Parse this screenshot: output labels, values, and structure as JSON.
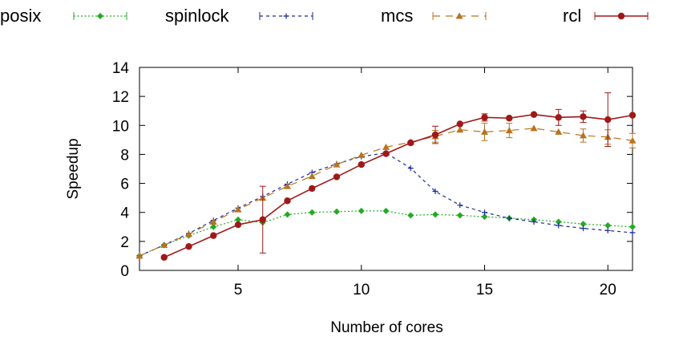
{
  "chart_data": {
    "type": "line",
    "xlabel": "Number of cores",
    "ylabel": "Speedup",
    "xlim": [
      1,
      21
    ],
    "ylim": [
      0,
      14
    ],
    "xticks": [
      5,
      10,
      15,
      20
    ],
    "yticks": [
      0,
      2,
      4,
      6,
      8,
      10,
      12,
      14
    ],
    "grid": false,
    "legend_position": "top",
    "series": [
      {
        "name": "posix",
        "color": "#22aa22",
        "dash": "dotted",
        "marker": "diamond",
        "points": [
          [
            1,
            1.0
          ],
          [
            2,
            1.75
          ],
          [
            3,
            2.4
          ],
          [
            4,
            3.0
          ],
          [
            5,
            3.5
          ],
          [
            6,
            3.3
          ],
          [
            7,
            3.85
          ],
          [
            8,
            4.0
          ],
          [
            9,
            4.05
          ],
          [
            10,
            4.1
          ],
          [
            11,
            4.1
          ],
          [
            12,
            3.8
          ],
          [
            13,
            3.85
          ],
          [
            14,
            3.8
          ],
          [
            15,
            3.7
          ],
          [
            16,
            3.6
          ],
          [
            17,
            3.5
          ],
          [
            18,
            3.35
          ],
          [
            19,
            3.2
          ],
          [
            20,
            3.1
          ],
          [
            21,
            3.0
          ]
        ]
      },
      {
        "name": "spinlock",
        "color": "#1a2a9a",
        "dash": "dashed-fine",
        "marker": "plus",
        "points": [
          [
            1,
            1.0
          ],
          [
            2,
            1.75
          ],
          [
            3,
            2.55
          ],
          [
            4,
            3.45
          ],
          [
            5,
            4.3
          ],
          [
            6,
            5.1
          ],
          [
            7,
            5.95
          ],
          [
            8,
            6.75
          ],
          [
            9,
            7.35
          ],
          [
            10,
            7.85
          ],
          [
            11,
            8.1
          ],
          [
            12,
            7.05
          ],
          [
            13,
            5.45
          ],
          [
            14,
            4.5
          ],
          [
            15,
            4.0
          ],
          [
            16,
            3.6
          ],
          [
            17,
            3.35
          ],
          [
            18,
            3.1
          ],
          [
            19,
            2.9
          ],
          [
            20,
            2.75
          ],
          [
            21,
            2.6
          ]
        ]
      },
      {
        "name": "mcs",
        "color": "#b8731f",
        "dash": "dashed",
        "marker": "triangle",
        "points": [
          [
            1,
            1.0
          ],
          [
            2,
            1.75
          ],
          [
            3,
            2.5
          ],
          [
            4,
            3.35
          ],
          [
            5,
            4.2
          ],
          [
            6,
            5.0
          ],
          [
            7,
            5.8
          ],
          [
            8,
            6.5
          ],
          [
            9,
            7.3
          ],
          [
            10,
            7.95
          ],
          [
            11,
            8.5
          ],
          [
            12,
            8.85
          ],
          [
            13,
            9.25
          ],
          [
            14,
            9.7
          ],
          [
            15,
            9.55
          ],
          [
            16,
            9.65
          ],
          [
            17,
            9.8
          ],
          [
            18,
            9.55
          ],
          [
            19,
            9.3
          ],
          [
            20,
            9.2
          ],
          [
            21,
            8.95
          ]
        ],
        "errors": [
          [
            13,
            0.4
          ],
          [
            15,
            0.6
          ],
          [
            16,
            0.5
          ],
          [
            19,
            0.45
          ],
          [
            20,
            0.5
          ],
          [
            21,
            0.5
          ]
        ]
      },
      {
        "name": "rcl",
        "color": "#a01818",
        "dash": "solid",
        "marker": "circle",
        "points": [
          [
            2,
            0.9
          ],
          [
            3,
            1.65
          ],
          [
            4,
            2.4
          ],
          [
            5,
            3.15
          ],
          [
            6,
            3.5
          ],
          [
            7,
            4.8
          ],
          [
            8,
            5.65
          ],
          [
            9,
            6.45
          ],
          [
            10,
            7.3
          ],
          [
            11,
            8.05
          ],
          [
            12,
            8.8
          ],
          [
            13,
            9.35
          ],
          [
            14,
            10.1
          ],
          [
            15,
            10.55
          ],
          [
            16,
            10.5
          ],
          [
            17,
            10.75
          ],
          [
            18,
            10.55
          ],
          [
            19,
            10.6
          ],
          [
            20,
            10.4
          ],
          [
            21,
            10.7
          ]
        ],
        "errors": [
          [
            6,
            2.3
          ],
          [
            13,
            0.6
          ],
          [
            15,
            0.25
          ],
          [
            18,
            0.55
          ],
          [
            19,
            0.4
          ],
          [
            20,
            1.85
          ]
        ]
      }
    ]
  }
}
